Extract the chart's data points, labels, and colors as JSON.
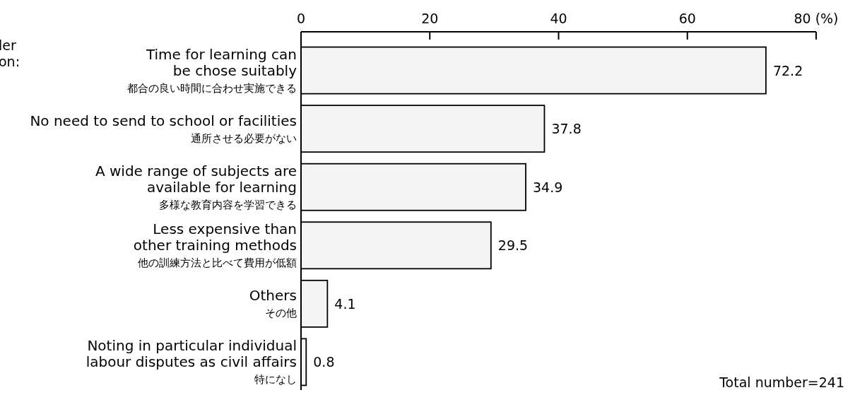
{
  "chart_data": {
    "type": "bar",
    "orientation": "horizontal",
    "categories": [
      "Time for learning can\nbe chose suitably\n都合の良い時間に合わせ実施できる",
      "No need to send to school or facilities\n通所させる必要がない",
      "A wide range of subjects are\navailable for learning\n多様な教育内容を学習できる",
      "Less expensive than\nother training methods\n他の訓練方法と比べて費用が低額",
      "Others\nその他",
      "Noting in particular individual\nlabour disputes as civil affairs\n特になし"
    ],
    "values": [
      72.2,
      37.8,
      34.9,
      29.5,
      4.1,
      0.8
    ],
    "color": "#f4f4f4",
    "data_labels": true,
    "xlim": [
      0,
      80
    ],
    "xticks": [
      0,
      20,
      40,
      60,
      {
        "value": 80,
        "label": "80 (%)"
      }
    ],
    "grid": false,
    "annotations": [
      "ler",
      "on:",
      "Total number=241"
    ]
  }
}
